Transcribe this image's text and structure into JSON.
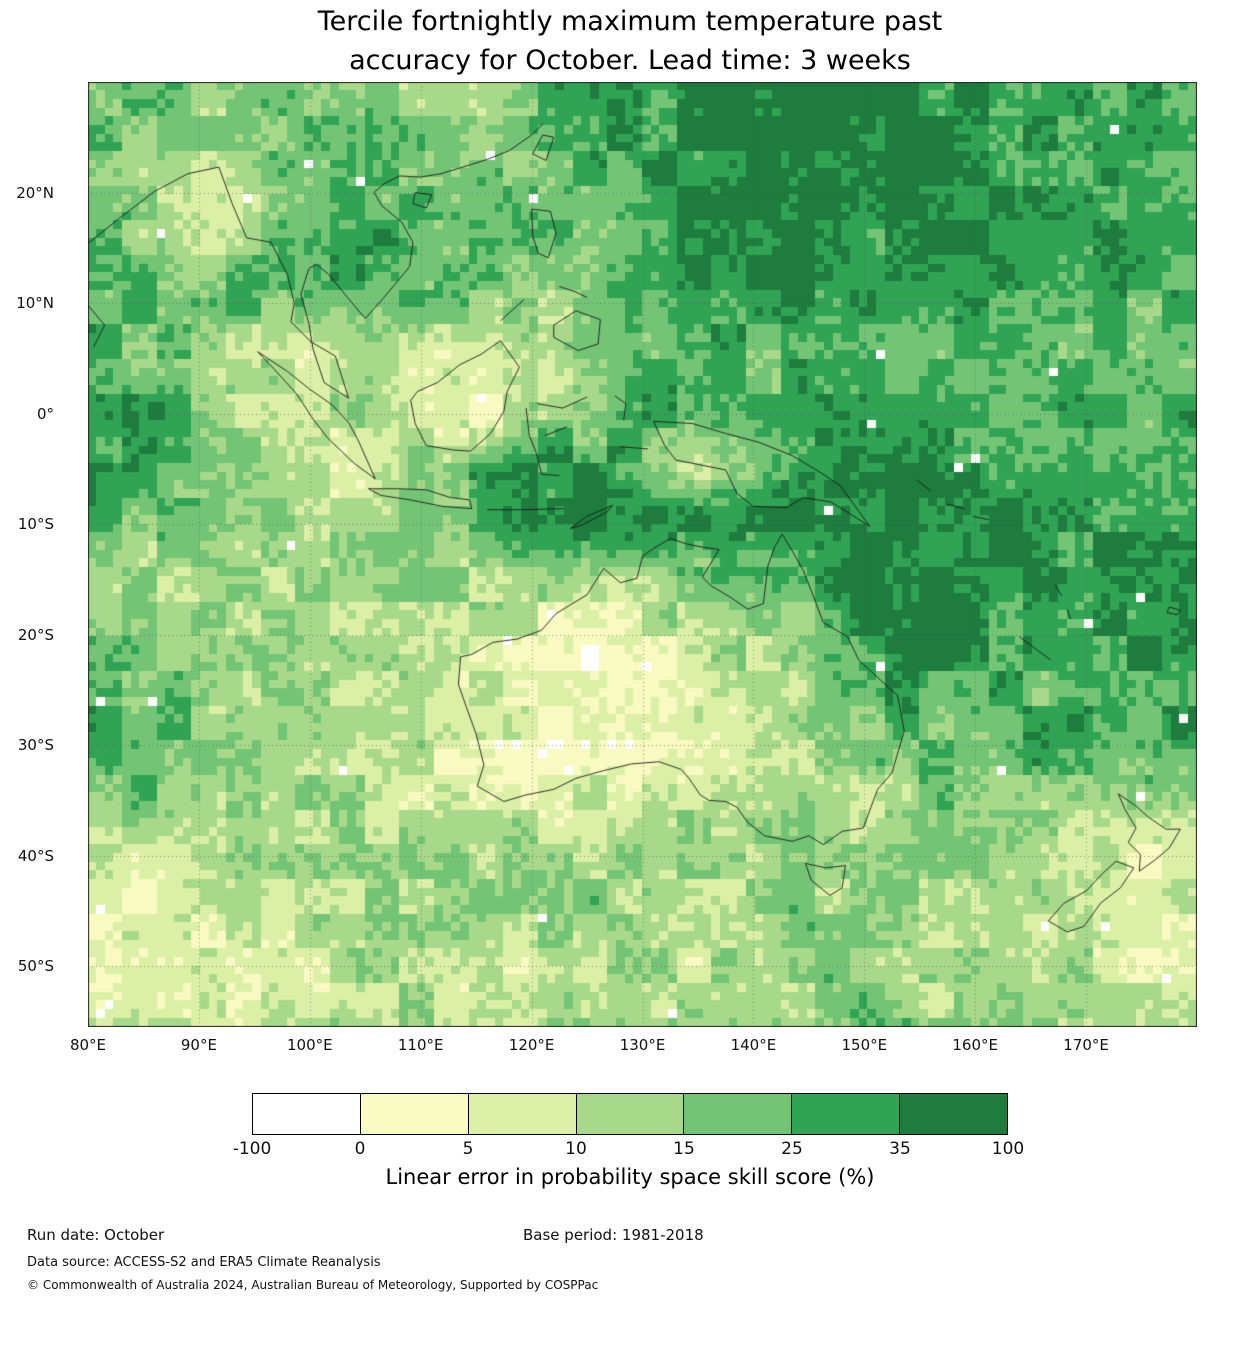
{
  "title": {
    "line1": "Tercile fortnightly maximum temperature past",
    "line2": "accuracy for October. Lead time: 3 weeks"
  },
  "chart_data": {
    "type": "heatmap",
    "title": "Tercile fortnightly maximum temperature past accuracy for October. Lead time: 3 weeks",
    "projection": "lon-lat map, Australasia / Maritime Continent region",
    "lon_range": [
      80,
      180
    ],
    "lat_range": [
      -55.5,
      30
    ],
    "grid_on": true,
    "x_ticks": [
      {
        "value": 80,
        "label": "80°E"
      },
      {
        "value": 90,
        "label": "90°E"
      },
      {
        "value": 100,
        "label": "100°E"
      },
      {
        "value": 110,
        "label": "110°E"
      },
      {
        "value": 120,
        "label": "120°E"
      },
      {
        "value": 130,
        "label": "130°E"
      },
      {
        "value": 140,
        "label": "140°E"
      },
      {
        "value": 150,
        "label": "150°E"
      },
      {
        "value": 160,
        "label": "160°E"
      },
      {
        "value": 170,
        "label": "170°E"
      }
    ],
    "y_ticks": [
      {
        "value": 20,
        "label": "20°N"
      },
      {
        "value": 10,
        "label": "10°N"
      },
      {
        "value": 0,
        "label": "0°"
      },
      {
        "value": -10,
        "label": "10°S"
      },
      {
        "value": -20,
        "label": "20°S"
      },
      {
        "value": -30,
        "label": "30°S"
      },
      {
        "value": -40,
        "label": "40°S"
      },
      {
        "value": -50,
        "label": "50°S"
      }
    ],
    "colorbar": {
      "label": "Linear error in probability space skill score (%)",
      "boundaries": [
        -100,
        0,
        5,
        10,
        15,
        25,
        35,
        100
      ],
      "tick_labels": [
        "-100",
        "0",
        "5",
        "10",
        "15",
        "25",
        "35",
        "100"
      ],
      "colors": [
        "#ffffff",
        "#f8fac1",
        "#dcefa6",
        "#a8d98a",
        "#74c476",
        "#31a354",
        "#1d7c3e"
      ]
    },
    "grid": {
      "description": "Coarse 5-degree estimate of the skill-score field; values are indices 0-6 into colorbar.colors (0 = <0%, 6 = 35-100%)",
      "lon_start": 80,
      "lon_step": 5,
      "lat_start": 30,
      "lat_step": -5,
      "values": [
        [
          4,
          4,
          3.5,
          4,
          4,
          4,
          3,
          3.5,
          4.5,
          5,
          5,
          5.5,
          5.5,
          6,
          6,
          5.5,
          5.5,
          5,
          5,
          5,
          5
        ],
        [
          4,
          3.5,
          3,
          3.5,
          4,
          4.5,
          4,
          3,
          4,
          4.5,
          5,
          5.5,
          6,
          6,
          6,
          5.5,
          5,
          5,
          5,
          4.5,
          4.5
        ],
        [
          3.5,
          3,
          2.5,
          3,
          4,
          4.5,
          4,
          3.5,
          4,
          4.5,
          5,
          5.5,
          6,
          6,
          6,
          5.5,
          5.5,
          5,
          5,
          5,
          5
        ],
        [
          4,
          3.5,
          3,
          3.5,
          4.5,
          5,
          4.5,
          4,
          3.5,
          4,
          5,
          5.5,
          6,
          6,
          5.5,
          5.5,
          5.5,
          5,
          5,
          5,
          5
        ],
        [
          4.5,
          4.5,
          4,
          4,
          4,
          4.5,
          4.5,
          4,
          3,
          3.5,
          4.5,
          5,
          5,
          5,
          5,
          5,
          4.5,
          4.5,
          4.5,
          4.5,
          4.5
        ],
        [
          4.5,
          4,
          3.5,
          2.5,
          2,
          3,
          2,
          1.5,
          2.5,
          3.5,
          4,
          4.5,
          4.5,
          4.5,
          4.5,
          4.5,
          4.5,
          4,
          4,
          4,
          4
        ],
        [
          5,
          5,
          4.5,
          2.5,
          2,
          3.5,
          1.5,
          1,
          2.5,
          3,
          4.5,
          5,
          4.5,
          4.5,
          4.5,
          5,
          4.5,
          4.5,
          4.5,
          4.5,
          4.5
        ],
        [
          5.5,
          5,
          4.5,
          3.5,
          2.5,
          2,
          3.5,
          4.5,
          5.5,
          5.5,
          4,
          2.5,
          3,
          4.5,
          5.5,
          5.5,
          5,
          4.5,
          4.5,
          4.5,
          4.5
        ],
        [
          4.5,
          4,
          3.5,
          3.5,
          3,
          3,
          3.5,
          4,
          5.5,
          6,
          6,
          6,
          6,
          6,
          6,
          5.5,
          5.5,
          5.5,
          5,
          5.5,
          5.5
        ],
        [
          3.5,
          3,
          3,
          3.5,
          3,
          3,
          3.5,
          3,
          3,
          2.5,
          3,
          3.5,
          4,
          4.5,
          6,
          6,
          5.5,
          5.5,
          5,
          5.5,
          6
        ],
        [
          4,
          3.5,
          3,
          3,
          3.5,
          3,
          3,
          2.5,
          2,
          1.5,
          2,
          2.5,
          3,
          3.5,
          5.5,
          6,
          5.5,
          5,
          5,
          5.5,
          6
        ],
        [
          4.5,
          4,
          3.5,
          3,
          3,
          3,
          3,
          2,
          1.5,
          1,
          1.5,
          2,
          2.5,
          3.5,
          4.5,
          5,
          4.5,
          4.5,
          4.5,
          4.5,
          5
        ],
        [
          4.5,
          4.5,
          4,
          3.5,
          3,
          2.5,
          2.5,
          2,
          1.5,
          1.5,
          1.5,
          2,
          2.5,
          3,
          3.5,
          4,
          4,
          4.5,
          4.5,
          4.5,
          5
        ],
        [
          4,
          4,
          3.5,
          3,
          3,
          2.5,
          2,
          2,
          2,
          2,
          2.5,
          2.5,
          2.5,
          3,
          3,
          3.5,
          3.5,
          4,
          3.5,
          2.5,
          3
        ],
        [
          2.5,
          2,
          2.5,
          3,
          3,
          3,
          3,
          3,
          3.5,
          3.5,
          3.5,
          3,
          3,
          3.5,
          3.5,
          3.5,
          3.5,
          3,
          2,
          1.5,
          2
        ],
        [
          1.5,
          1.5,
          2,
          2.5,
          3,
          3,
          3.5,
          3.5,
          3.5,
          3.5,
          3,
          3,
          3,
          3.5,
          3.5,
          3,
          3,
          2.5,
          2,
          1.5,
          2
        ],
        [
          1.5,
          1.5,
          1.5,
          2,
          2,
          2.5,
          2.5,
          2,
          2.5,
          3,
          3,
          2.5,
          2.5,
          3,
          3.5,
          3,
          2.5,
          2.5,
          2.5,
          2,
          2
        ],
        [
          2,
          2.5,
          2,
          2,
          2.5,
          3,
          3,
          2.5,
          2.5,
          3,
          3.5,
          3,
          3,
          3.5,
          4,
          3.5,
          3,
          3,
          3,
          2.5,
          3
        ]
      ]
    }
  },
  "footer": {
    "run_date": "Run date: October",
    "base_period": "Base period: 1981-2018",
    "data_source": "Data source: ACCESS-S2 and ERA5 Climate Reanalysis",
    "copyright": "© Commonwealth of Australia 2024, Australian Bureau of Meteorology, Supported by COSPPac"
  }
}
